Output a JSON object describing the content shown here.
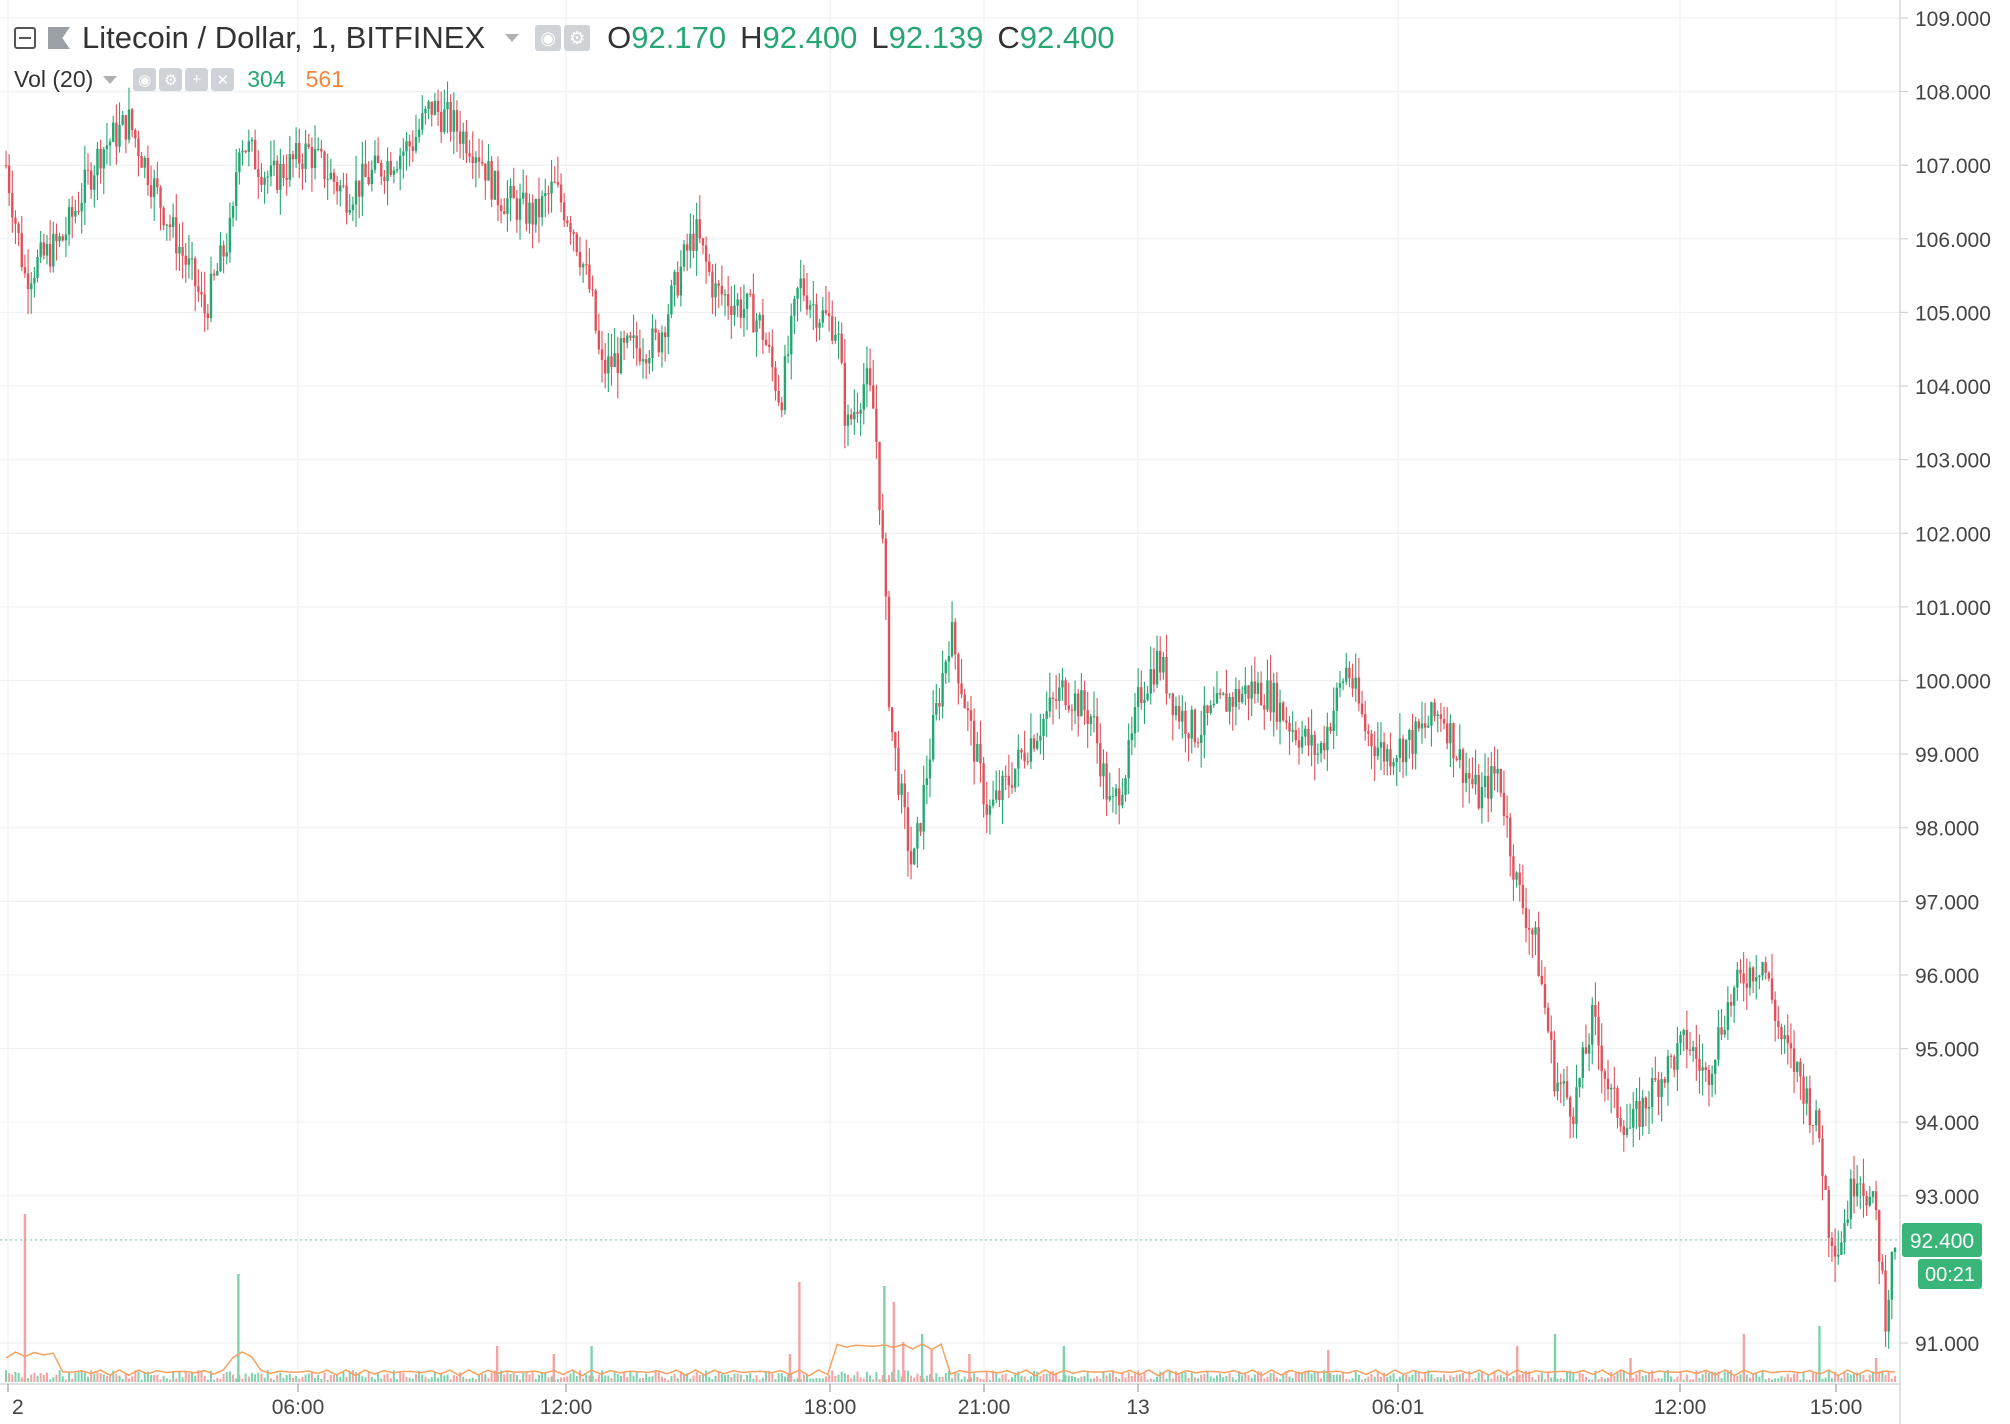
{
  "header": {
    "symbol": "Litecoin / Dollar, 1, BITFINEX",
    "ohlc": [
      {
        "k": "O",
        "v": "92.170"
      },
      {
        "k": "H",
        "v": "92.400"
      },
      {
        "k": "L",
        "v": "92.139"
      },
      {
        "k": "C",
        "v": "92.400"
      }
    ],
    "volume_label": "Vol (20)",
    "volume_up": "304",
    "volume_down": "561"
  },
  "price_tag": "92.400",
  "countdown_tag": "00:21",
  "colors": {
    "up": "#26a672",
    "down": "#e0525b",
    "vol_up": "#7fd1ae",
    "vol_down": "#f4a3a3",
    "ma": "#f5a15f",
    "grid": "#eef1f4"
  },
  "chart_data": {
    "type": "candlestick",
    "x_tick_labels": [
      "2",
      "06:00",
      "12:00",
      "18:00",
      "21:00",
      "13",
      "06:01",
      "12:00",
      "15:00"
    ],
    "y_tick_labels": [
      "109.000",
      "108.000",
      "107.000",
      "106.000",
      "105.000",
      "104.000",
      "103.000",
      "102.000",
      "101.000",
      "100.000",
      "99.000",
      "98.000",
      "97.000",
      "96.000",
      "95.000",
      "94.000",
      "93.000",
      "91.000"
    ],
    "ylim": [
      90.4,
      109.1
    ],
    "price_path": [
      [
        0,
        107.0
      ],
      [
        0.01,
        105.5
      ],
      [
        0.03,
        106.0
      ],
      [
        0.05,
        107.2
      ],
      [
        0.065,
        107.6
      ],
      [
        0.08,
        106.6
      ],
      [
        0.1,
        105.4
      ],
      [
        0.105,
        105.0
      ],
      [
        0.12,
        106.2
      ],
      [
        0.123,
        107.4
      ],
      [
        0.14,
        106.8
      ],
      [
        0.16,
        107.2
      ],
      [
        0.18,
        106.6
      ],
      [
        0.2,
        107.0
      ],
      [
        0.215,
        107.3
      ],
      [
        0.225,
        107.8
      ],
      [
        0.235,
        107.6
      ],
      [
        0.25,
        107.2
      ],
      [
        0.26,
        106.6
      ],
      [
        0.28,
        106.3
      ],
      [
        0.29,
        106.7
      ],
      [
        0.3,
        106.2
      ],
      [
        0.31,
        105.2
      ],
      [
        0.315,
        104.2
      ],
      [
        0.33,
        104.5
      ],
      [
        0.345,
        104.6
      ],
      [
        0.36,
        105.8
      ],
      [
        0.365,
        106.1
      ],
      [
        0.375,
        105.3
      ],
      [
        0.395,
        105.0
      ],
      [
        0.4,
        104.8
      ],
      [
        0.41,
        103.8
      ],
      [
        0.42,
        105.4
      ],
      [
        0.43,
        105.0
      ],
      [
        0.44,
        104.8
      ],
      [
        0.445,
        103.4
      ],
      [
        0.455,
        104.1
      ],
      [
        0.46,
        103.6
      ],
      [
        0.465,
        101.4
      ],
      [
        0.468,
        99.5
      ],
      [
        0.475,
        98.2
      ],
      [
        0.48,
        97.4
      ],
      [
        0.49,
        99.2
      ],
      [
        0.5,
        100.7
      ],
      [
        0.51,
        99.4
      ],
      [
        0.52,
        98.2
      ],
      [
        0.53,
        98.6
      ],
      [
        0.54,
        99.1
      ],
      [
        0.56,
        99.9
      ],
      [
        0.575,
        99.5
      ],
      [
        0.585,
        98.2
      ],
      [
        0.595,
        99.0
      ],
      [
        0.6,
        99.8
      ],
      [
        0.61,
        100.3
      ],
      [
        0.62,
        99.6
      ],
      [
        0.63,
        99.3
      ],
      [
        0.645,
        99.7
      ],
      [
        0.66,
        99.9
      ],
      [
        0.67,
        99.8
      ],
      [
        0.68,
        99.4
      ],
      [
        0.695,
        99.0
      ],
      [
        0.71,
        100.2
      ],
      [
        0.72,
        99.3
      ],
      [
        0.73,
        99.0
      ],
      [
        0.745,
        99.2
      ],
      [
        0.76,
        99.6
      ],
      [
        0.77,
        98.9
      ],
      [
        0.78,
        98.4
      ],
      [
        0.79,
        98.8
      ],
      [
        0.8,
        97.2
      ],
      [
        0.81,
        96.4
      ],
      [
        0.82,
        94.6
      ],
      [
        0.83,
        94.2
      ],
      [
        0.84,
        95.4
      ],
      [
        0.85,
        94.3
      ],
      [
        0.86,
        93.9
      ],
      [
        0.875,
        94.6
      ],
      [
        0.89,
        95.1
      ],
      [
        0.9,
        94.6
      ],
      [
        0.91,
        95.5
      ],
      [
        0.92,
        96.0
      ],
      [
        0.93,
        96.2
      ],
      [
        0.94,
        95.1
      ],
      [
        0.95,
        94.6
      ],
      [
        0.96,
        93.8
      ],
      [
        0.965,
        92.6
      ],
      [
        0.97,
        92.3
      ],
      [
        0.98,
        93.4
      ],
      [
        0.99,
        92.7
      ],
      [
        0.995,
        91.4
      ],
      [
        1.0,
        92.4
      ]
    ],
    "volume_spikes": [
      [
        0.01,
        0.42
      ],
      [
        0.123,
        0.27
      ],
      [
        0.26,
        0.09
      ],
      [
        0.29,
        0.07
      ],
      [
        0.31,
        0.09
      ],
      [
        0.415,
        0.07
      ],
      [
        0.42,
        0.25
      ],
      [
        0.465,
        0.24
      ],
      [
        0.47,
        0.2
      ],
      [
        0.475,
        0.1
      ],
      [
        0.485,
        0.12
      ],
      [
        0.49,
        0.08
      ],
      [
        0.51,
        0.07
      ],
      [
        0.56,
        0.09
      ],
      [
        0.7,
        0.08
      ],
      [
        0.8,
        0.09
      ],
      [
        0.82,
        0.12
      ],
      [
        0.86,
        0.06
      ],
      [
        0.92,
        0.12
      ],
      [
        0.96,
        0.14
      ],
      [
        0.99,
        0.06
      ]
    ]
  }
}
